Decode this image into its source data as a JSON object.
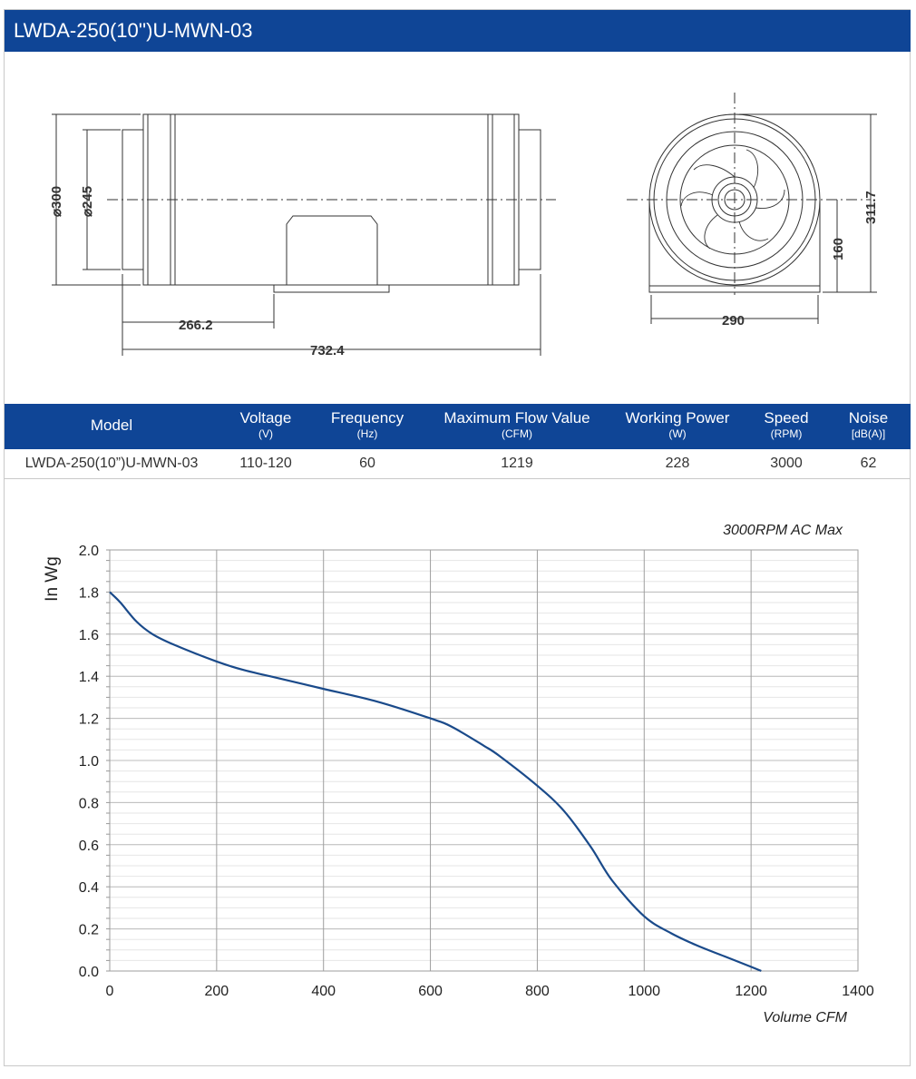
{
  "title": "LWDA-250(10'')U-MWN-03",
  "drawing": {
    "dim_outer_dia": "⌀300",
    "dim_inner_dia": "⌀245",
    "dim_inlet_length": "266.2",
    "dim_total_length": "732.4",
    "dim_width": "290",
    "dim_height": "311.7",
    "dim_center_height": "160"
  },
  "specs": {
    "headers": [
      {
        "label": "Model",
        "unit": ""
      },
      {
        "label": "Voltage",
        "unit": "(V)"
      },
      {
        "label": "Frequency",
        "unit": "(Hz)"
      },
      {
        "label": "Maximum Flow Value",
        "unit": "(CFM)"
      },
      {
        "label": "Working Power",
        "unit": "(W)"
      },
      {
        "label": "Speed",
        "unit": "(RPM)"
      },
      {
        "label": "Noise",
        "unit": "[dB(A)]"
      }
    ],
    "row": [
      "LWDA-250(10”)U-MWN-03",
      "110-120",
      "60",
      "1219",
      "228",
      "3000",
      "62"
    ]
  },
  "chart_data": {
    "type": "line",
    "annotation": "3000RPM AC Max",
    "xlabel": "Volume CFM",
    "ylabel": "In Wg",
    "xlim": [
      0,
      1400
    ],
    "ylim": [
      0,
      2.0
    ],
    "x_ticks": [
      "0",
      "200",
      "400",
      "600",
      "800",
      "1000",
      "1200",
      "1400"
    ],
    "y_ticks": [
      "0.0",
      "0.2",
      "0.4",
      "0.6",
      "0.8",
      "1.0",
      "1.2",
      "1.4",
      "1.6",
      "1.8",
      "2.0"
    ],
    "grid": true,
    "series": [
      {
        "color": "#1a4a8a",
        "x": [
          0,
          20,
          50,
          80,
          120,
          200,
          250,
          300,
          400,
          500,
          600,
          640,
          700,
          730,
          800,
          850,
          900,
          940,
          1000,
          1050,
          1100,
          1150,
          1200,
          1219
        ],
        "y": [
          1.8,
          1.75,
          1.66,
          1.6,
          1.55,
          1.47,
          1.43,
          1.4,
          1.34,
          1.28,
          1.2,
          1.16,
          1.07,
          1.02,
          0.88,
          0.76,
          0.59,
          0.43,
          0.26,
          0.18,
          0.12,
          0.07,
          0.02,
          0.0
        ]
      }
    ]
  }
}
